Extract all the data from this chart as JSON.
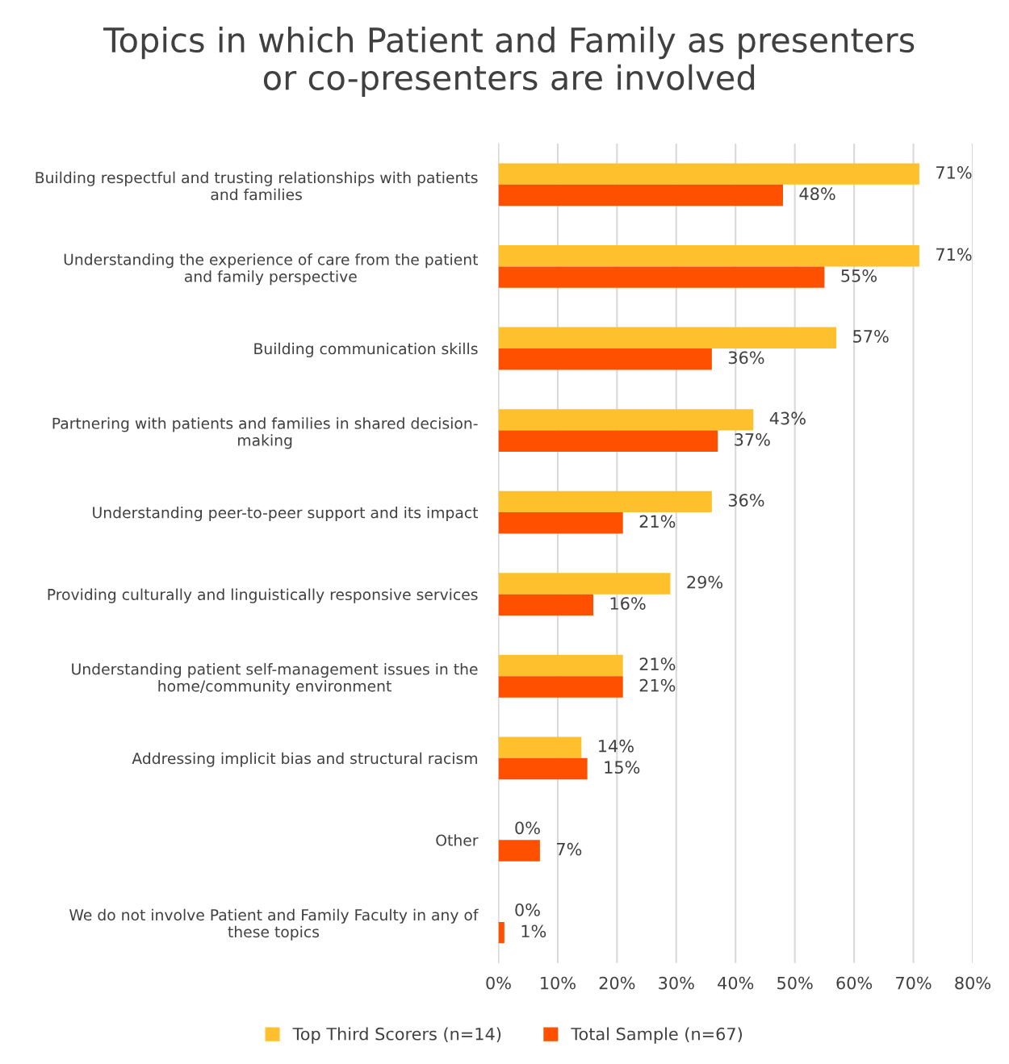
{
  "chart_data": {
    "type": "bar",
    "orientation": "horizontal",
    "title": "Topics in which Patient and Family as presenters\nor co-presenters are involved",
    "categories": [
      "Building respectful and trusting relationships with patients\nand families",
      "Understanding the experience of care from the patient\nand family perspective",
      "Building communication skills",
      "Partnering with patients and families in shared decision-\nmaking",
      "Understanding peer-to-peer support and its impact",
      "Providing culturally and linguistically responsive services",
      "Understanding patient self-management issues in the\nhome/community environment",
      "Addressing implicit bias and structural racism",
      "Other",
      "We do not involve Patient and Family Faculty in any of\nthese topics"
    ],
    "series": [
      {
        "name": "Top Third Scorers (n=14)",
        "color": "#ffc02d",
        "values": [
          71,
          71,
          57,
          43,
          36,
          29,
          21,
          14,
          0,
          0
        ],
        "value_labels": [
          "71%",
          "71%",
          "57%",
          "43%",
          "36%",
          "29%",
          "21%",
          "14%",
          "0%",
          "0%"
        ]
      },
      {
        "name": "Total Sample (n=67)",
        "color": "#ff5000",
        "values": [
          48,
          55,
          36,
          37,
          21,
          16,
          21,
          15,
          7,
          1
        ],
        "value_labels": [
          "48%",
          "55%",
          "36%",
          "37%",
          "21%",
          "16%",
          "21%",
          "15%",
          "7%",
          "1%"
        ]
      }
    ],
    "xlim": [
      0,
      80
    ],
    "xticks": [
      {
        "value": 0,
        "label": "0%"
      },
      {
        "value": 10,
        "label": "10%"
      },
      {
        "value": 20,
        "label": "20%"
      },
      {
        "value": 30,
        "label": "30%"
      },
      {
        "value": 40,
        "label": "40%"
      },
      {
        "value": 50,
        "label": "50%"
      },
      {
        "value": 60,
        "label": "60%"
      },
      {
        "value": 70,
        "label": "70%"
      },
      {
        "value": 80,
        "label": "80%"
      }
    ],
    "grid": "x",
    "legend": "bottom"
  }
}
